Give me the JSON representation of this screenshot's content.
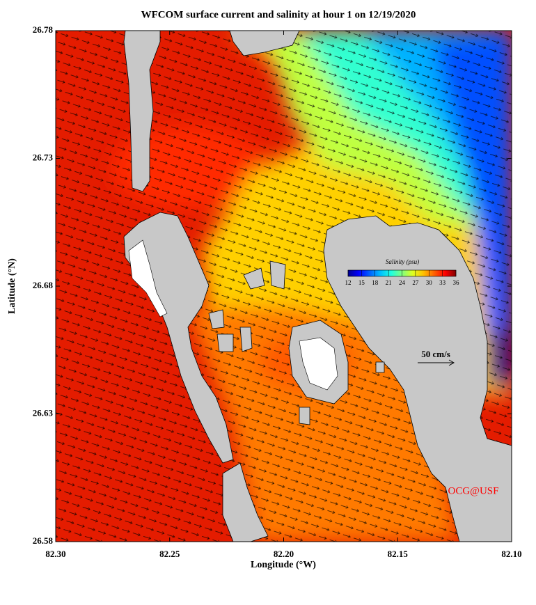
{
  "chart_data": {
    "type": "map",
    "title": "WFCOM surface current and salinity at hour 1 on 12/19/2020",
    "xlabel": "Longitude (°W)",
    "ylabel": "Latitude (°N)",
    "xlim": [
      82.3,
      82.1
    ],
    "xticks": [
      {
        "value": 82.3,
        "label": "82.30"
      },
      {
        "value": 82.25,
        "label": "82.25"
      },
      {
        "value": 82.2,
        "label": "82.20"
      },
      {
        "value": 82.15,
        "label": "82.15"
      },
      {
        "value": 82.1,
        "label": "82.10"
      }
    ],
    "ylim": [
      26.58,
      26.78
    ],
    "yticks": [
      {
        "value": 26.58,
        "label": "26.58"
      },
      {
        "value": 26.63,
        "label": "26.63"
      },
      {
        "value": 26.68,
        "label": "26.68"
      },
      {
        "value": 26.73,
        "label": "26.73"
      },
      {
        "value": 26.78,
        "label": "26.78"
      }
    ],
    "colorbar": {
      "label": "Salinity (psu)",
      "lim": [
        12,
        36
      ],
      "ticks": [
        12,
        15,
        18,
        21,
        24,
        27,
        30,
        33,
        36
      ],
      "colormap": [
        "#00008f",
        "#0000ff",
        "#0060ff",
        "#00bfff",
        "#20ffdf",
        "#80ff80",
        "#dfff20",
        "#ffbf00",
        "#ff6000",
        "#ff0000",
        "#800000"
      ]
    },
    "scale_label": "50 cm/s",
    "credit": "OCG@USF"
  }
}
